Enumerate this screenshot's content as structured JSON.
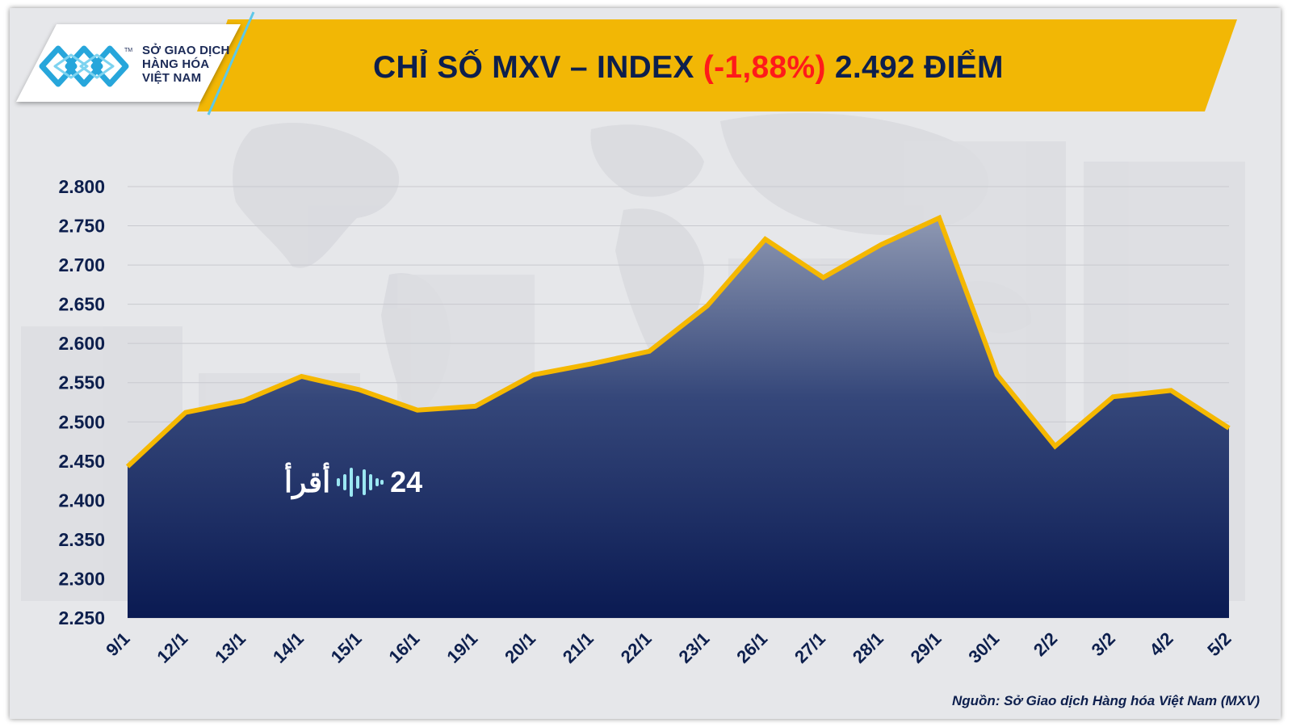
{
  "header": {
    "logo_line1": "SỞ GIAO DỊCH",
    "logo_line2": "HÀNG HÓA",
    "logo_line3": "VIỆT NAM",
    "logo_tm": "TM",
    "title_prefix": "CHỈ SỐ MXV – INDEX ",
    "title_change": "(-1,88%)",
    "title_value": " 2.492 ĐIỂM"
  },
  "watermark": {
    "text_left": "أقرأ",
    "text_right": "24"
  },
  "source": "Nguồn: Sở Giao dịch Hàng hóa Việt Nam (MXV)",
  "colors": {
    "banner": "#f2b705",
    "title": "#0d1f4d",
    "change": "#ff1a1a",
    "line": "#f5b800",
    "area_top": "#8e98b2",
    "area_bottom": "#0a1a52",
    "axis_text": "#0d1f4d"
  },
  "chart_data": {
    "type": "area",
    "title": "CHỈ SỐ MXV – INDEX (-1,88%) 2.492 ĐIỂM",
    "xlabel": "",
    "ylabel": "",
    "categories": [
      "9/1",
      "12/1",
      "13/1",
      "14/1",
      "15/1",
      "16/1",
      "19/1",
      "20/1",
      "21/1",
      "22/1",
      "23/1",
      "26/1",
      "27/1",
      "28/1",
      "29/1",
      "30/1",
      "2/2",
      "3/2",
      "4/2",
      "5/2"
    ],
    "values": [
      2443,
      2512,
      2527,
      2558,
      2541,
      2515,
      2520,
      2560,
      2574,
      2590,
      2648,
      2733,
      2684,
      2726,
      2760,
      2560,
      2469,
      2532,
      2540,
      2492
    ],
    "ylim": [
      2250,
      2800
    ],
    "yticks": [
      "2.800",
      "2.750",
      "2.700",
      "2.650",
      "2.600",
      "2.550",
      "2.500",
      "2.450",
      "2.400",
      "2.350",
      "2.300",
      "2.250"
    ],
    "grid": true,
    "legend": "none"
  }
}
